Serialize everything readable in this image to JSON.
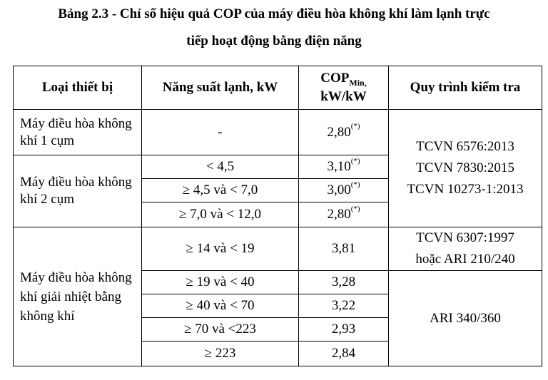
{
  "title": {
    "line1": "Bảng 2.3 - Chỉ số hiệu quả COP của máy điều hòa không khí làm lạnh trực",
    "line2": "tiếp hoạt động bằng điện năng"
  },
  "table": {
    "headers": {
      "device_type": "Loại thiết bị",
      "capacity": "Năng suất lạnh, kW",
      "cop_main": "COP",
      "cop_sub": "Min,",
      "cop_unit": "kW/kW",
      "test_procedure": "Quy trình kiểm tra"
    },
    "groups": [
      {
        "device": "Máy điều hòa không khí 1 cụm",
        "rows": [
          {
            "capacity": "-",
            "cop": "2,80",
            "note": "(*)"
          }
        ]
      },
      {
        "device": "Máy điều hòa không khí 2 cụm",
        "rows": [
          {
            "capacity": "< 4,5",
            "cop": "3,10",
            "note": "(*)"
          },
          {
            "capacity": "≥ 4,5 và < 7,0",
            "cop": "3,00",
            "note": "(*)"
          },
          {
            "capacity": "≥ 7,0 và < 12,0",
            "cop": "2,80",
            "note": "(*)"
          }
        ]
      },
      {
        "device": "Máy điều hòa không khí giải nhiệt bằng không khí",
        "rows": [
          {
            "capacity": "≥ 14  và < 19",
            "cop": "3,81",
            "note": ""
          },
          {
            "capacity": "≥ 19 và < 40",
            "cop": "3,28",
            "note": ""
          },
          {
            "capacity": "≥ 40 và < 70",
            "cop": "3,22",
            "note": ""
          },
          {
            "capacity": "≥ 70 và <223",
            "cop": "2,93",
            "note": ""
          },
          {
            "capacity": "≥ 223",
            "cop": "2,84",
            "note": ""
          }
        ]
      }
    ],
    "procedures": {
      "group_a": [
        "TCVN 6576:2013",
        "TCVN 7830:2015",
        "TCVN 10273-1:2013"
      ],
      "group_b": [
        "TCVN 6307:1997",
        "hoặc ARI 210/240"
      ],
      "group_c": [
        "ARI 340/360"
      ]
    }
  }
}
